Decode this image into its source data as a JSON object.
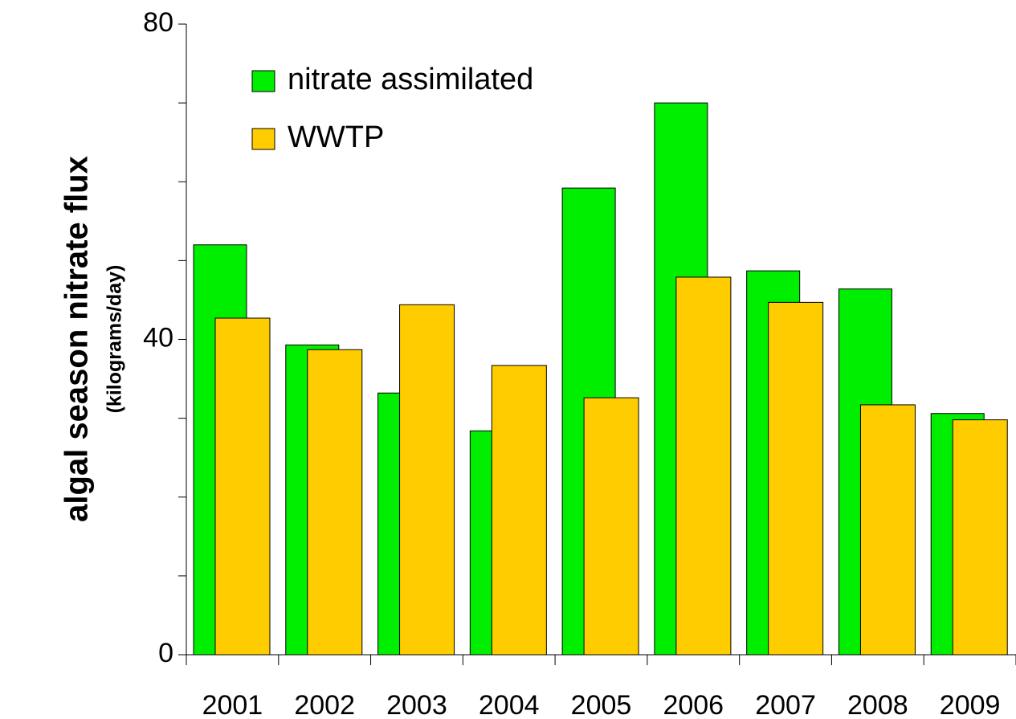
{
  "chart_data": {
    "type": "bar",
    "ylabel": "algal season nitrate flux",
    "ylabel_sub": "(kilograms/day)",
    "categories": [
      "2001",
      "2002",
      "2003",
      "2004",
      "2005",
      "2006",
      "2007",
      "2008",
      "2009"
    ],
    "series": [
      {
        "name": "nitrate assimilated",
        "color": "#00ee00",
        "values": [
          52,
          39.3,
          33.2,
          28.4,
          59.2,
          70,
          48.7,
          46.4,
          30.6
        ]
      },
      {
        "name": "WWTP",
        "color": "#ffcc00",
        "values": [
          42.7,
          38.7,
          44.4,
          36.7,
          32.6,
          47.9,
          44.7,
          31.7,
          29.8
        ]
      }
    ],
    "ylim": [
      0,
      80
    ],
    "yticks": [
      0,
      40,
      80
    ],
    "yminorticks": [
      10,
      20,
      30,
      50,
      60,
      70
    ],
    "legend": "upper-left"
  }
}
